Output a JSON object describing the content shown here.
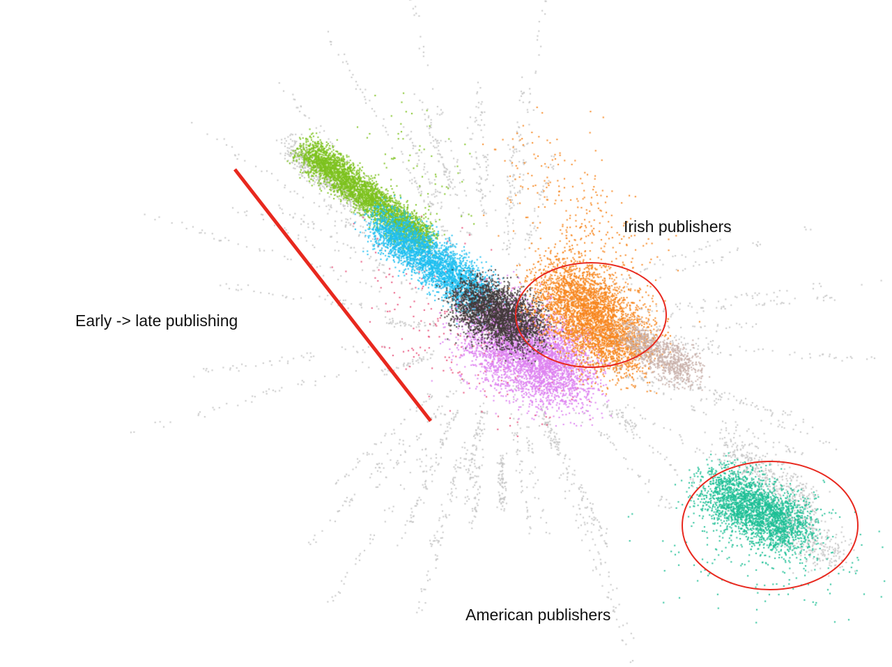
{
  "annotations": {
    "irish": "Irish publishers",
    "early_late": "Early -> late publishing",
    "american": "American publishers"
  },
  "colors": {
    "annotation_red": "#e8281e",
    "green": "#7dc21e",
    "cyan": "#1fbff0",
    "dark": "#403838",
    "violet": "#dd80f0",
    "orange": "#f7861e",
    "taupe": "#c8b0aa",
    "teal": "#1dbf95",
    "gray": "#c4c4c4",
    "rose": "#e8507a"
  }
}
